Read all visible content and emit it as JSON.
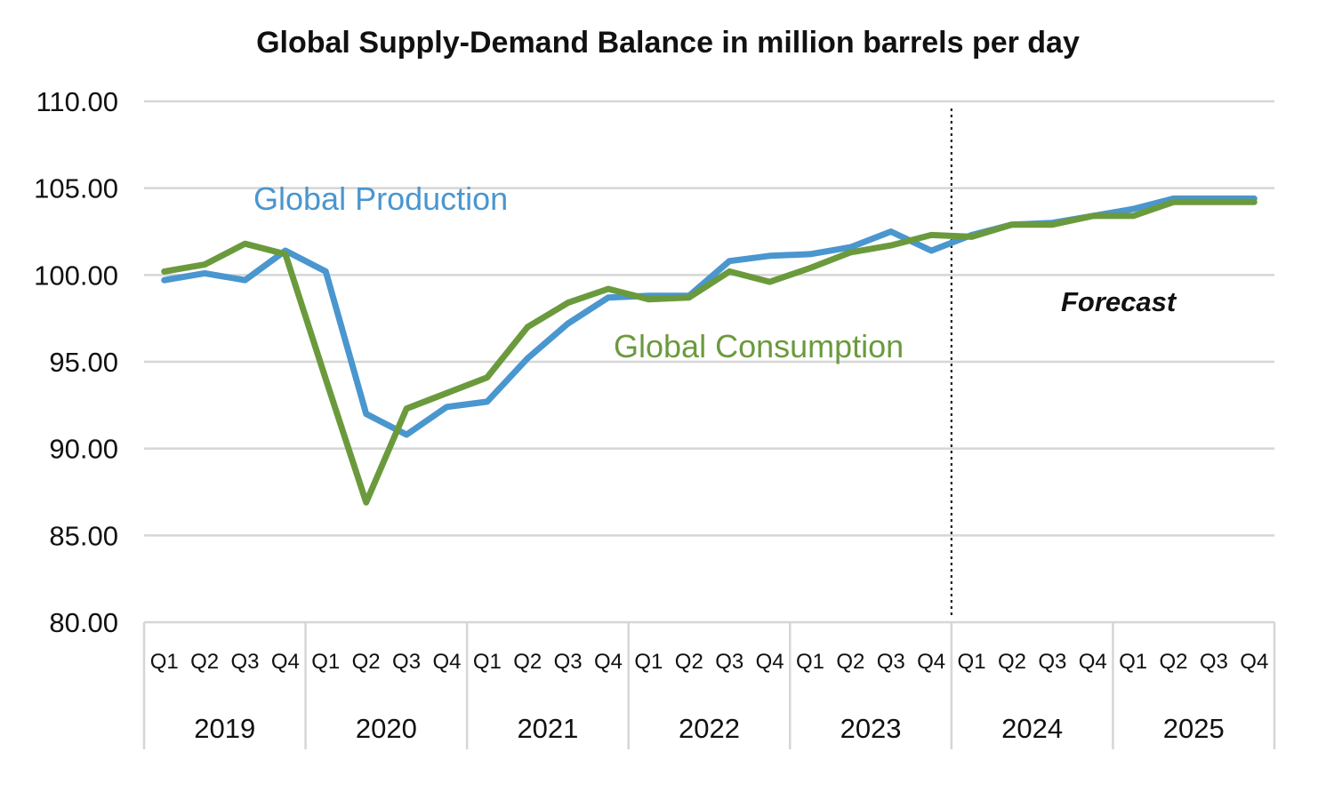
{
  "chart_data": {
    "type": "line",
    "title": "Global Supply-Demand Balance in million barrels per day",
    "xlabel": "",
    "ylabel": "",
    "ylim": [
      80,
      110
    ],
    "yticks": [
      "110.00",
      "105.00",
      "100.00",
      "95.00",
      "90.00",
      "85.00",
      "80.00"
    ],
    "quarter_labels": [
      "Q1",
      "Q2",
      "Q3",
      "Q4"
    ],
    "years": [
      "2019",
      "2020",
      "2021",
      "2022",
      "2023",
      "2024",
      "2025"
    ],
    "categories": [
      "2019 Q1",
      "2019 Q2",
      "2019 Q3",
      "2019 Q4",
      "2020 Q1",
      "2020 Q2",
      "2020 Q3",
      "2020 Q4",
      "2021 Q1",
      "2021 Q2",
      "2021 Q3",
      "2021 Q4",
      "2022 Q1",
      "2022 Q2",
      "2022 Q3",
      "2022 Q4",
      "2023 Q1",
      "2023 Q2",
      "2023 Q3",
      "2023 Q4",
      "2024 Q1",
      "2024 Q2",
      "2024 Q3",
      "2024 Q4",
      "2025 Q1",
      "2025 Q2",
      "2025 Q3",
      "2025 Q4"
    ],
    "grid": true,
    "forecast_divider_after": "2023 Q4",
    "annotations": {
      "forecast": "Forecast"
    },
    "series": [
      {
        "name": "Global Production",
        "color": "#4a96cf",
        "values": [
          99.7,
          100.1,
          99.7,
          101.4,
          100.2,
          92.0,
          90.8,
          92.4,
          92.7,
          95.2,
          97.2,
          98.7,
          98.8,
          98.8,
          100.8,
          101.1,
          101.2,
          101.6,
          102.5,
          101.4,
          102.3,
          102.9,
          103.0,
          103.4,
          103.8,
          104.4,
          104.4,
          104.4
        ]
      },
      {
        "name": "Global Consumption",
        "color": "#6b9a3d",
        "values": [
          100.2,
          100.6,
          101.8,
          101.2,
          94.0,
          86.9,
          92.3,
          93.2,
          94.1,
          97.0,
          98.4,
          99.2,
          98.6,
          98.7,
          100.2,
          99.6,
          100.4,
          101.3,
          101.7,
          102.3,
          102.2,
          102.9,
          102.9,
          103.4,
          103.4,
          104.2,
          104.2,
          104.2
        ]
      }
    ]
  }
}
